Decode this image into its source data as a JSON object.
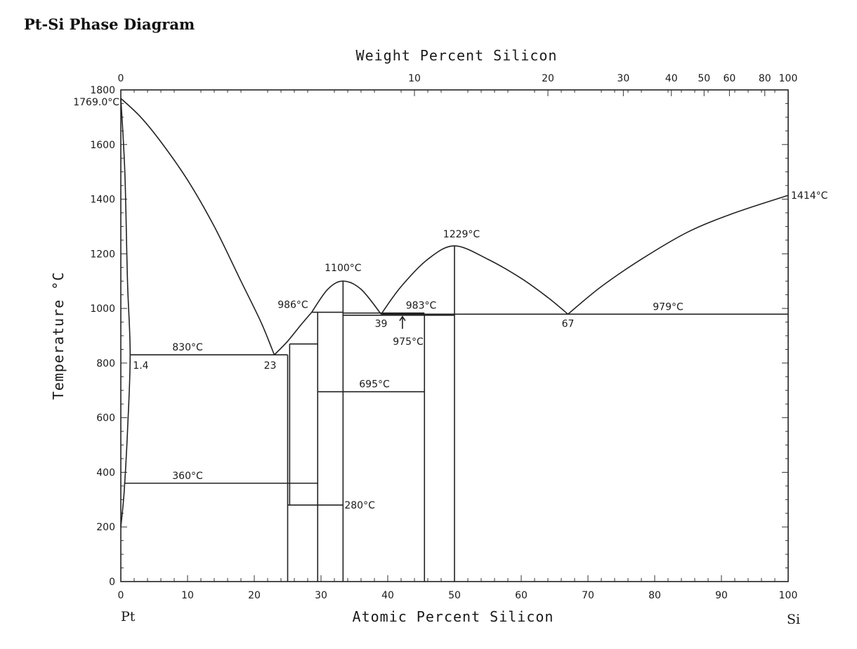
{
  "title": "Pt-Si Phase Diagram",
  "axes": {
    "x_bottom_label": "Atomic Percent Silicon",
    "x_top_label": "Weight Percent Silicon",
    "y_label": "Temperature °C",
    "x_range": [
      0,
      100
    ],
    "y_range": [
      0,
      1800
    ],
    "x_bottom_ticks": [
      0,
      10,
      20,
      30,
      40,
      50,
      60,
      70,
      80,
      90,
      100
    ],
    "y_ticks": [
      0,
      200,
      400,
      600,
      800,
      1000,
      1200,
      1400,
      1600,
      1800
    ],
    "x_top_ticks": [
      {
        "label": "0",
        "at_atomic": 0
      },
      {
        "label": "10",
        "at_atomic": 44.0
      },
      {
        "label": "20",
        "at_atomic": 64.0
      },
      {
        "label": "30",
        "at_atomic": 75.3
      },
      {
        "label": "40",
        "at_atomic": 82.5
      },
      {
        "label": "50",
        "at_atomic": 87.4
      },
      {
        "label": "60",
        "at_atomic": 91.2
      },
      {
        "label": "80",
        "at_atomic": 96.5
      },
      {
        "label": "100",
        "at_atomic": 100
      }
    ],
    "left_end_label": "Pt",
    "right_end_label": "Si"
  },
  "annotations": [
    {
      "text": "1769.0°C",
      "x": 0,
      "y": 1769
    },
    {
      "text": "1414°C",
      "x": 100,
      "y": 1414
    },
    {
      "text": "1229°C",
      "x": 50,
      "y": 1229
    },
    {
      "text": "1100°C",
      "x": 33.3,
      "y": 1100
    },
    {
      "text": "986°C",
      "x": 28.6,
      "y": 986
    },
    {
      "text": "983°C",
      "x": 45,
      "y": 983
    },
    {
      "text": "979°C",
      "x": 82,
      "y": 979
    },
    {
      "text": "975°C",
      "x": 42,
      "y": 975
    },
    {
      "text": "830°C",
      "x": 10,
      "y": 830
    },
    {
      "text": "695°C",
      "x": 38,
      "y": 695
    },
    {
      "text": "360°C",
      "x": 10,
      "y": 360
    },
    {
      "text": "280°C",
      "x": 33.3,
      "y": 280
    },
    {
      "text": "1.4",
      "x": 1.4,
      "y": 830
    },
    {
      "text": "23",
      "x": 23,
      "y": 830
    },
    {
      "text": "39",
      "x": 39,
      "y": 979
    },
    {
      "text": "67",
      "x": 67,
      "y": 979
    }
  ],
  "chart_data": {
    "type": "phase-diagram",
    "system": "Pt-Si",
    "liquidus": [
      {
        "name": "Pt liquidus",
        "points": [
          [
            0,
            1769
          ],
          [
            3,
            1700
          ],
          [
            6,
            1610
          ],
          [
            10,
            1470
          ],
          [
            14,
            1300
          ],
          [
            18,
            1100
          ],
          [
            21,
            950
          ],
          [
            23,
            830
          ]
        ]
      },
      {
        "name": "Pt2Si liquidus",
        "points": [
          [
            23,
            830
          ],
          [
            25,
            880
          ],
          [
            27,
            940
          ],
          [
            28.6,
            986
          ]
        ]
      },
      {
        "name": "PtSi-rich dome",
        "points": [
          [
            28.6,
            986
          ],
          [
            31,
            1070
          ],
          [
            33.3,
            1100
          ],
          [
            36,
            1070
          ],
          [
            39,
            979
          ]
        ]
      },
      {
        "name": "PtSi congruent dome",
        "points": [
          [
            39,
            979
          ],
          [
            42,
            1080
          ],
          [
            46,
            1180
          ],
          [
            50,
            1229
          ],
          [
            55,
            1180
          ],
          [
            60,
            1110
          ],
          [
            64,
            1040
          ],
          [
            67,
            979
          ]
        ]
      },
      {
        "name": "Si liquidus",
        "points": [
          [
            67,
            979
          ],
          [
            72,
            1080
          ],
          [
            78,
            1180
          ],
          [
            85,
            1280
          ],
          [
            92,
            1350
          ],
          [
            100,
            1414
          ]
        ]
      }
    ],
    "pt_solvus": [
      [
        0,
        1769
      ],
      [
        0.6,
        1500
      ],
      [
        1.0,
        1100
      ],
      [
        1.4,
        830
      ],
      [
        1.0,
        550
      ],
      [
        0.5,
        330
      ],
      [
        0,
        200
      ]
    ],
    "isotherms": [
      {
        "label": "830°C",
        "y": 830,
        "x_from": 1.4,
        "x_to": 25
      },
      {
        "label": "986°C",
        "y": 986,
        "x_from": 28.6,
        "x_to": 33.3
      },
      {
        "label": "983°C",
        "y": 983,
        "x_from": 33.3,
        "x_to": 45.5
      },
      {
        "label": "979°C",
        "y": 979,
        "x_from": 39,
        "x_to": 100
      },
      {
        "label": "975°C",
        "y": 975,
        "x_from": 33.3,
        "x_to": 50
      },
      {
        "label": "695°C",
        "y": 695,
        "x_from": 29.5,
        "x_to": 45.5
      },
      {
        "label": "360°C",
        "y": 360,
        "x_from": 0.5,
        "x_to": 29.5
      },
      {
        "label": "280°C",
        "y": 280,
        "x_from": 25,
        "x_to": 33.3
      },
      {
        "label": "",
        "y": 870,
        "x_from": 25.3,
        "x_to": 29.5
      }
    ],
    "compound_lines": [
      {
        "x": 25,
        "y_from": 0,
        "y_to": 830
      },
      {
        "x": 25.3,
        "y_from": 280,
        "y_to": 870
      },
      {
        "x": 29.5,
        "y_from": 0,
        "y_to": 986
      },
      {
        "x": 33.3,
        "y_from": 0,
        "y_to": 1100
      },
      {
        "x": 45.5,
        "y_from": 0,
        "y_to": 975
      },
      {
        "x": 50,
        "y_from": 0,
        "y_to": 1229
      }
    ],
    "invariant_points": [
      {
        "label": "23",
        "x": 23,
        "y": 830
      },
      {
        "label": "39",
        "x": 39,
        "y": 979
      },
      {
        "label": "67",
        "x": 67,
        "y": 979
      },
      {
        "label": "1.4",
        "x": 1.4,
        "y": 830
      }
    ]
  }
}
